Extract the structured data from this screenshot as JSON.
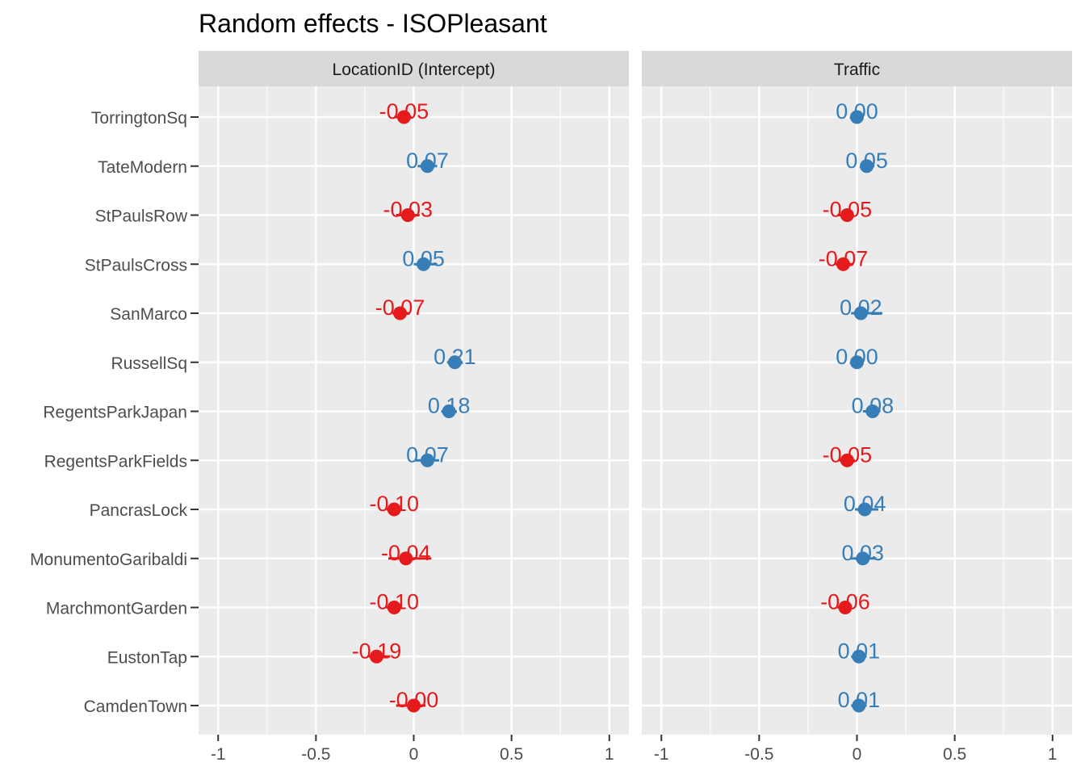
{
  "chart_data": {
    "type": "dot",
    "title": "Random effects - ISOPleasant",
    "xlim": [
      -1.1,
      1.1
    ],
    "x_ticks": [
      -1,
      -0.5,
      0,
      0.5,
      1
    ],
    "x_tick_labels": [
      "-1",
      "-0.5",
      "0",
      "0.5",
      "1"
    ],
    "grid": true,
    "colors": {
      "positive": "#377EB8",
      "negative": "#E41A1C",
      "panel_bg": "#EBEBEB",
      "strip_bg": "#D9D9D9"
    },
    "categories": [
      "TorringtonSq",
      "TateModern",
      "StPaulsRow",
      "StPaulsCross",
      "SanMarco",
      "RussellSq",
      "RegentsParkJapan",
      "RegentsParkFields",
      "PancrasLock",
      "MonumentoGaribaldi",
      "MarchmontGarden",
      "EustonTap",
      "CamdenTown"
    ],
    "panels": [
      {
        "title": "LocationID (Intercept)",
        "values": [
          -0.05,
          0.07,
          -0.03,
          0.05,
          -0.07,
          0.21,
          0.18,
          0.07,
          -0.1,
          -0.04,
          -0.1,
          -0.19,
          -0.0
        ],
        "labels": [
          "-0.05",
          "0.07",
          "-0.03",
          "0.05",
          "-0.07",
          "0.21",
          "0.18",
          "0.07",
          "-0.10",
          "-0.04",
          "-0.10",
          "-0.19",
          "-0.00"
        ],
        "ci_low": [
          -0.1,
          0.02,
          -0.09,
          0.0,
          -0.11,
          0.17,
          0.14,
          0.01,
          -0.14,
          -0.13,
          -0.14,
          -0.23,
          -0.09
        ],
        "ci_high": [
          -0.01,
          0.12,
          0.03,
          0.12,
          -0.02,
          0.25,
          0.22,
          0.13,
          -0.06,
          0.09,
          -0.06,
          -0.12,
          0.06
        ]
      },
      {
        "title": "Traffic",
        "values": [
          0.0,
          0.05,
          -0.05,
          -0.07,
          0.02,
          0.0,
          0.08,
          -0.05,
          0.04,
          0.03,
          -0.06,
          0.01,
          0.01
        ],
        "labels": [
          "0.00",
          "0.05",
          "-0.05",
          "-0.07",
          "0.02",
          "0.00",
          "0.08",
          "-0.05",
          "0.04",
          "0.03",
          "-0.06",
          "0.01",
          "0.01"
        ],
        "ci_low": [
          -0.03,
          0.02,
          -0.1,
          -0.11,
          -0.03,
          -0.03,
          0.03,
          -0.09,
          -0.01,
          -0.03,
          -0.1,
          -0.03,
          -0.03
        ],
        "ci_high": [
          0.02,
          0.09,
          -0.02,
          -0.02,
          0.13,
          0.03,
          0.12,
          -0.01,
          0.11,
          0.1,
          -0.03,
          0.05,
          0.05
        ]
      }
    ]
  }
}
